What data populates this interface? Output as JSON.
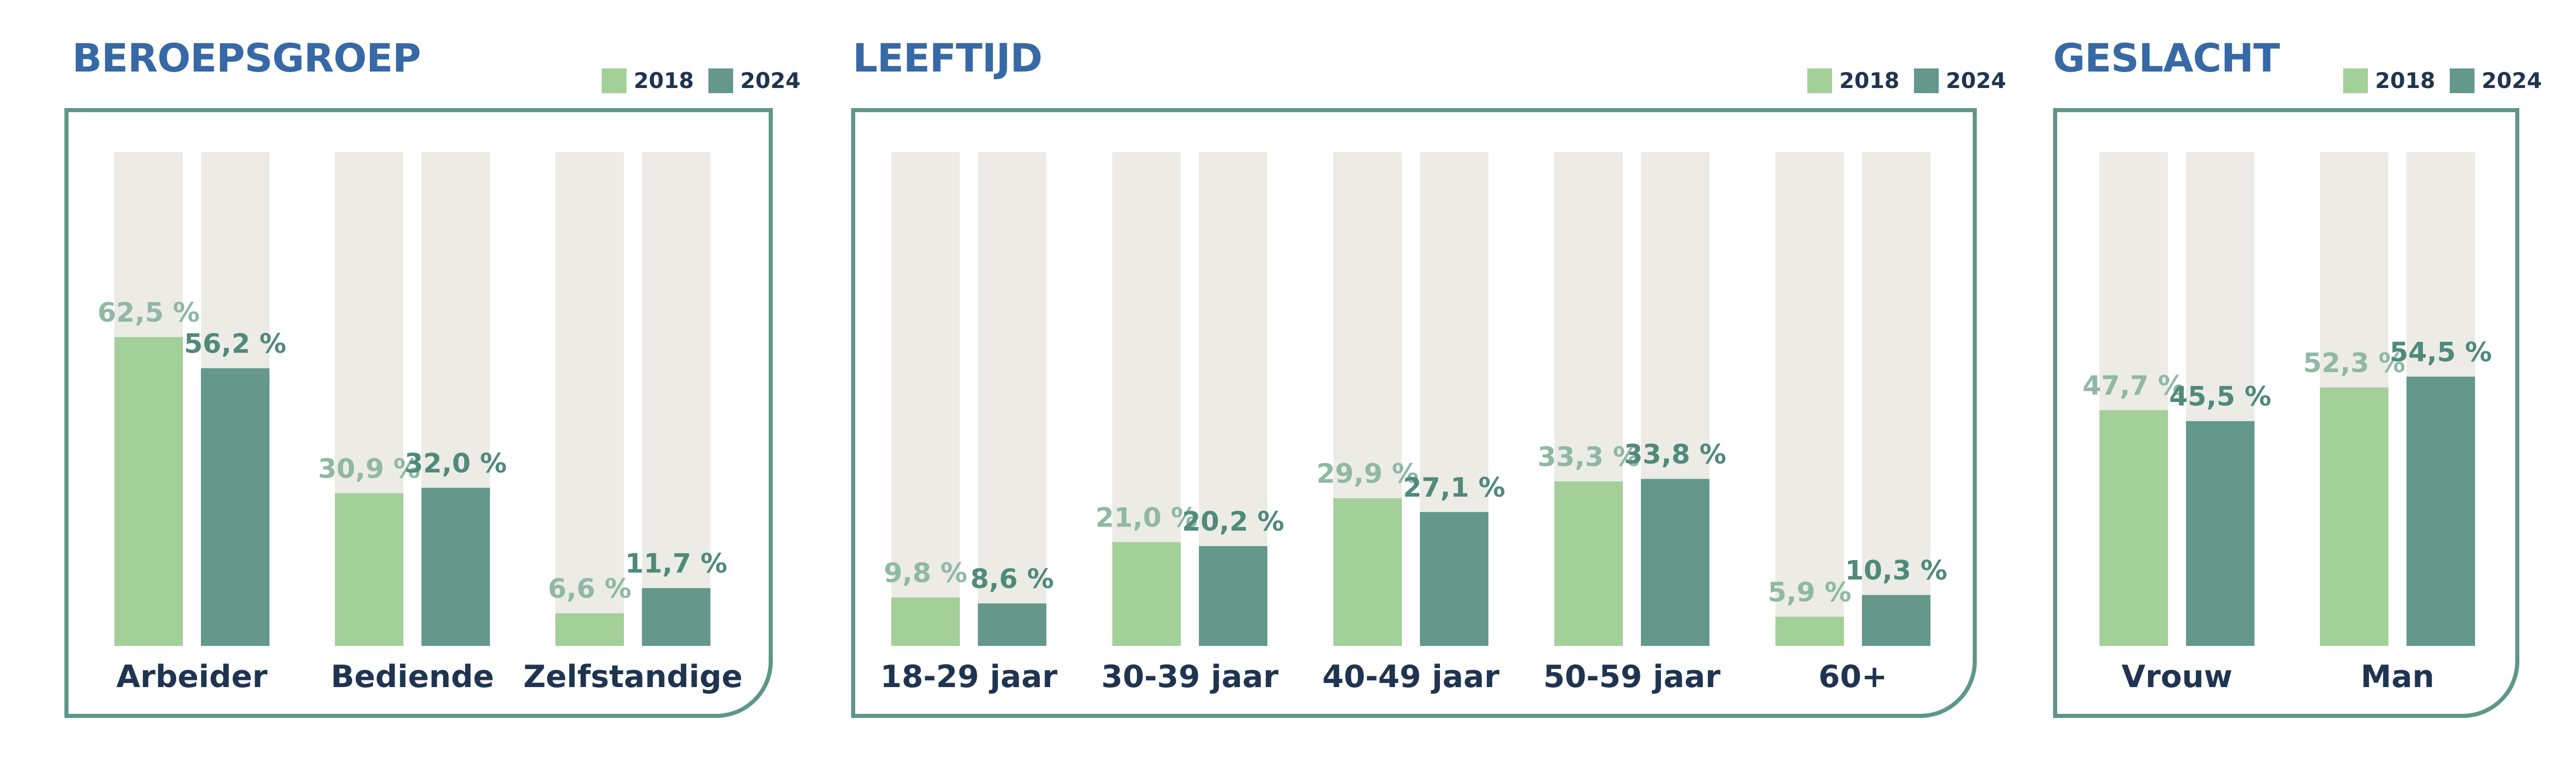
{
  "legend": {
    "label_2018": "2018",
    "label_2024": "2024"
  },
  "colors": {
    "c2018": "#a3cf98",
    "c2024": "#63988a",
    "track": "#ecebe6",
    "label2018": "#8fb8a5",
    "label2024": "#4f8a7a",
    "title": "#3669a6",
    "frame": "#5f9787"
  },
  "chart_data": [
    {
      "type": "bar",
      "title": "BEROEPSGROEP",
      "categories": [
        "Arbeider",
        "Bediende",
        "Zelfstandige"
      ],
      "series": [
        {
          "name": "2018",
          "values": [
            62.5,
            30.9,
            6.6
          ],
          "labels": [
            "62,5 %",
            "30,9 %",
            "6,6 %"
          ]
        },
        {
          "name": "2024",
          "values": [
            56.2,
            32.0,
            11.7
          ],
          "labels": [
            "56,2 %",
            "32,0 %",
            "11,7 %"
          ]
        }
      ],
      "ylim": [
        0,
        100
      ],
      "legend": "top-right"
    },
    {
      "type": "bar",
      "title": "LEEFTIJD",
      "categories": [
        "18-29 jaar",
        "30-39 jaar",
        "40-49 jaar",
        "50-59 jaar",
        "60+"
      ],
      "series": [
        {
          "name": "2018",
          "values": [
            9.8,
            21.0,
            29.9,
            33.3,
            5.9
          ],
          "labels": [
            "9,8 %",
            "21,0 %",
            "29,9 %",
            "33,3 %",
            "5,9 %"
          ]
        },
        {
          "name": "2024",
          "values": [
            8.6,
            20.2,
            27.1,
            33.8,
            10.3
          ],
          "labels": [
            "8,6 %",
            "20,2 %",
            "27,1 %",
            "33,8 %",
            "10,3 %"
          ]
        }
      ],
      "ylim": [
        0,
        100
      ],
      "legend": "top-right"
    },
    {
      "type": "bar",
      "title": "GESLACHT",
      "categories": [
        "Vrouw",
        "Man"
      ],
      "series": [
        {
          "name": "2018",
          "values": [
            47.7,
            52.3
          ],
          "labels": [
            "47,7 %",
            "52,3 %"
          ]
        },
        {
          "name": "2024",
          "values": [
            45.5,
            54.5
          ],
          "labels": [
            "45,5 %",
            "54,5 %"
          ]
        }
      ],
      "ylim": [
        0,
        100
      ],
      "legend": "top-right"
    }
  ]
}
